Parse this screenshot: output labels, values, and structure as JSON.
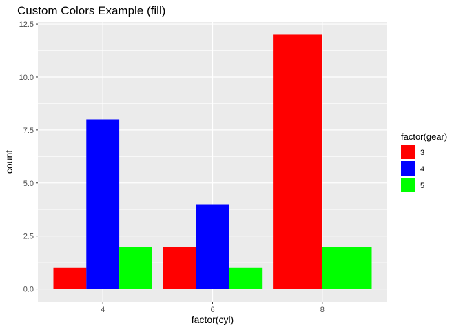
{
  "chart_data": {
    "type": "bar",
    "title": "Custom Colors Example (fill)",
    "xlabel": "factor(cyl)",
    "ylabel": "count",
    "categories": [
      "4",
      "6",
      "8"
    ],
    "ylim": [
      -0.6,
      12.6
    ],
    "yticks": [
      0.0,
      2.5,
      5.0,
      7.5,
      10.0,
      12.5
    ],
    "ytick_labels": [
      "0.0",
      "2.5",
      "5.0",
      "7.5",
      "10.0",
      "12.5"
    ],
    "grid": true,
    "position": "dodge",
    "legend": {
      "title": "factor(gear)",
      "placement": "right",
      "entries": [
        {
          "label": "3",
          "color": "#FF0000"
        },
        {
          "label": "4",
          "color": "#0000FF"
        },
        {
          "label": "5",
          "color": "#00FF00"
        }
      ]
    },
    "series": [
      {
        "name": "3",
        "color": "#FF0000",
        "values": [
          1,
          2,
          12
        ]
      },
      {
        "name": "4",
        "color": "#0000FF",
        "values": [
          8,
          4,
          null
        ]
      },
      {
        "name": "5",
        "color": "#00FF00",
        "values": [
          2,
          1,
          2
        ]
      }
    ],
    "panel_background": "#EBEBEB",
    "gridline_color": "#FFFFFF"
  }
}
